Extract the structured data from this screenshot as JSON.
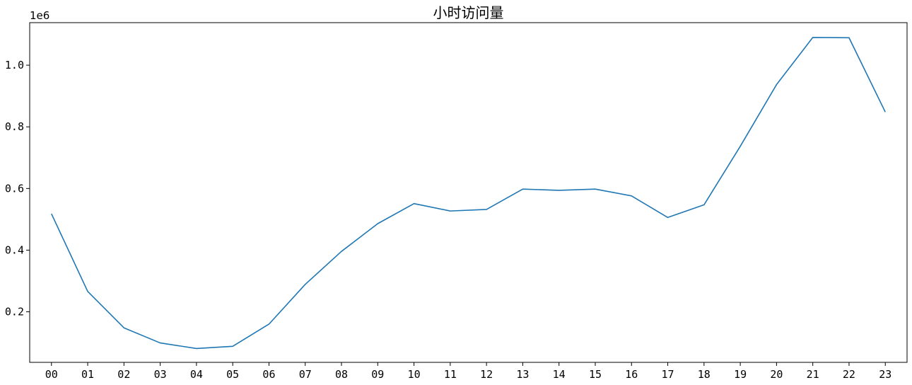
{
  "chart_data": {
    "type": "line",
    "title": "小时访问量",
    "xlabel": "",
    "ylabel": "",
    "y_offset_label": "1e6",
    "categories": [
      "00",
      "01",
      "02",
      "03",
      "04",
      "05",
      "06",
      "07",
      "08",
      "09",
      "10",
      "11",
      "12",
      "13",
      "14",
      "15",
      "16",
      "17",
      "18",
      "19",
      "20",
      "21",
      "22",
      "23"
    ],
    "series": [
      {
        "values": [
          518000,
          266000,
          148000,
          99000,
          81000,
          88000,
          160000,
          289000,
          396000,
          486000,
          551000,
          527000,
          532000,
          598000,
          594000,
          598000,
          576000,
          506000,
          547000,
          737000,
          937000,
          1090000,
          1089000,
          848000
        ],
        "color": "#1f77b4"
      }
    ],
    "ylim": [
      36000,
      1138000
    ],
    "yticks": [
      200000,
      400000,
      600000,
      800000,
      1000000
    ],
    "ytick_labels": [
      "0.2",
      "0.4",
      "0.6",
      "0.8",
      "1.0"
    ],
    "grid": false,
    "legend": "none"
  }
}
